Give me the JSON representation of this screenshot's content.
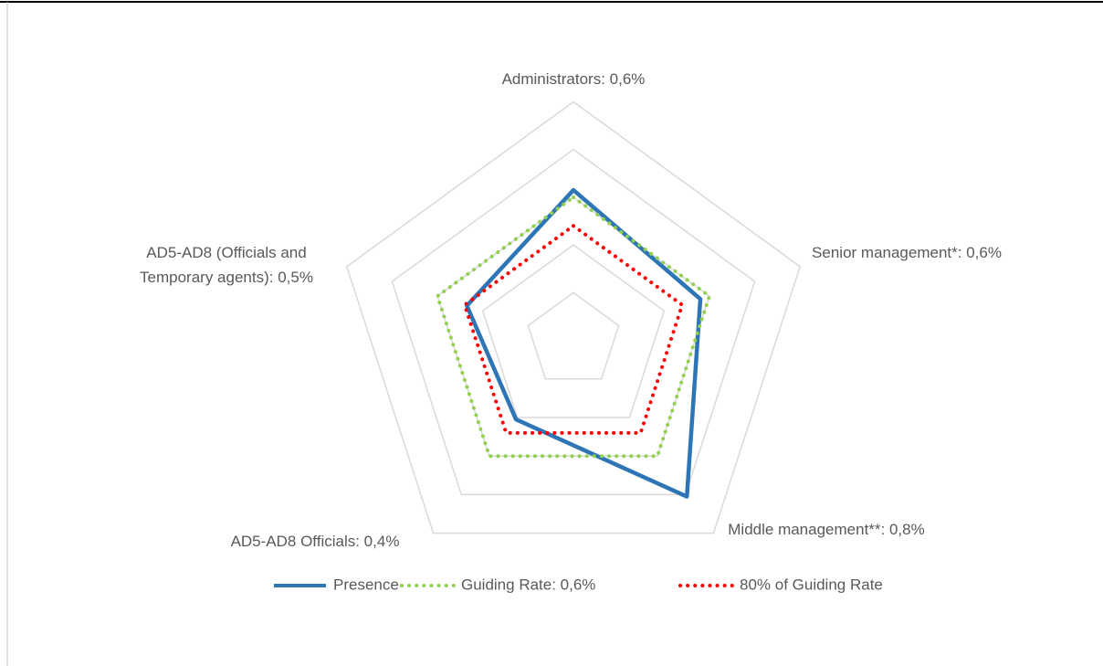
{
  "chart_data": {
    "type": "radar",
    "categories": [
      "Administrators: 0,6%",
      "Senior management*: 0,6%",
      "Middle management**: 0,8%",
      "AD5-AD8 Officials: 0,4%",
      "AD5-AD8 (Officials and Temporary agents): 0,5%"
    ],
    "series": [
      {
        "name": "Presence",
        "color": "#2e75b6",
        "dash": "solid",
        "values": [
          0.63,
          0.56,
          0.81,
          0.41,
          0.47
        ]
      },
      {
        "name": "Guiding Rate: 0,6%",
        "color": "#92d050",
        "dash": "dotted",
        "values": [
          0.6,
          0.6,
          0.6,
          0.6,
          0.6
        ]
      },
      {
        "name": "80% of Guiding Rate",
        "color": "#ff0000",
        "dash": "dotted",
        "values": [
          0.48,
          0.48,
          0.48,
          0.48,
          0.48
        ]
      }
    ],
    "ylim": [
      0,
      1
    ],
    "yticks": [
      0,
      0.2,
      0.4,
      0.6,
      0.8,
      1
    ],
    "grid": true,
    "legend": "bottom"
  }
}
